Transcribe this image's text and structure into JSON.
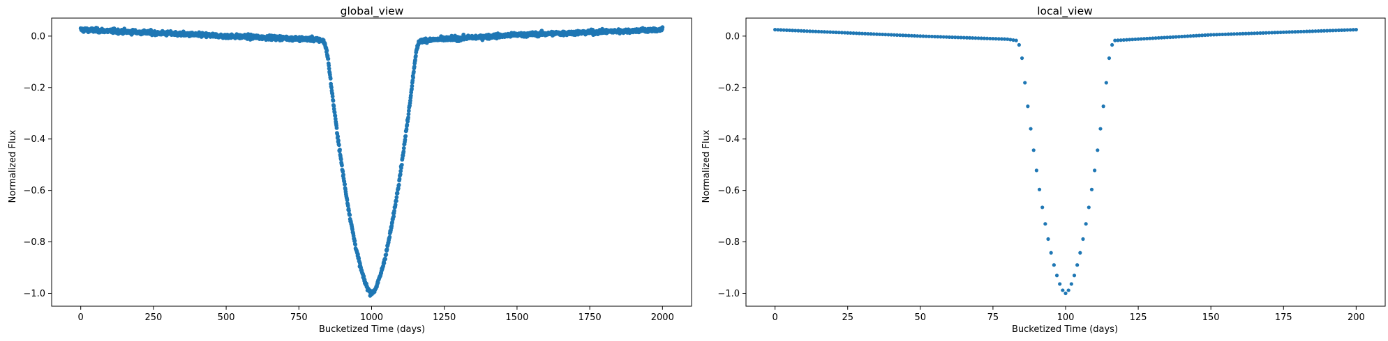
{
  "chart_data": [
    {
      "type": "scatter",
      "title": "global_view",
      "xlabel": "Bucketized Time (days)",
      "ylabel": "Normalized Flux",
      "xlim": [
        -100,
        2100
      ],
      "ylim": [
        -1.05,
        0.07
      ],
      "xticks": [
        0,
        250,
        500,
        750,
        1000,
        1250,
        1500,
        1750,
        2000
      ],
      "yticks": [
        0.0,
        -0.2,
        -0.4,
        -0.6,
        -0.8,
        -1.0
      ],
      "xtick_labels": [
        "0",
        "250",
        "500",
        "750",
        "1000",
        "1250",
        "1500",
        "1750",
        "2000"
      ],
      "ytick_labels": [
        "0.0",
        "−0.2",
        "−0.4",
        "−0.6",
        "−0.8",
        "−1.0"
      ],
      "grid": false,
      "marker_color": "#1f77b4",
      "series": [
        {
          "x_start": 0,
          "x_end": 2000,
          "num_points": 2001,
          "baseline": [
            [
              0,
              0.025
            ],
            [
              500,
              0.0
            ],
            [
              800,
              -0.012
            ],
            [
              830,
              -0.017
            ],
            [
              1170,
              -0.017
            ],
            [
              1200,
              -0.015
            ],
            [
              1500,
              0.005
            ],
            [
              2000,
              0.025
            ]
          ],
          "dip": {
            "center": 1000,
            "depth": -1.0,
            "width_core": 150,
            "width_wing": 170
          },
          "noise": 0.007
        }
      ]
    },
    {
      "type": "scatter",
      "title": "local_view",
      "xlabel": "Bucketized Time (days)",
      "ylabel": "Normalized Flux",
      "xlim": [
        -10,
        210
      ],
      "ylim": [
        -1.05,
        0.07
      ],
      "xticks": [
        0,
        25,
        50,
        75,
        100,
        125,
        150,
        175,
        200
      ],
      "yticks": [
        0.0,
        -0.2,
        -0.4,
        -0.6,
        -0.8,
        -1.0
      ],
      "xtick_labels": [
        "0",
        "25",
        "50",
        "75",
        "100",
        "125",
        "150",
        "175",
        "200"
      ],
      "ytick_labels": [
        "0.0",
        "−0.2",
        "−0.4",
        "−0.6",
        "−0.8",
        "−1.0"
      ],
      "grid": false,
      "marker_color": "#1f77b4",
      "series": [
        {
          "x_start": 0,
          "x_end": 200,
          "num_points": 201,
          "baseline": [
            [
              0,
              0.025
            ],
            [
              50,
              0.0
            ],
            [
              80,
              -0.012
            ],
            [
              83,
              -0.017
            ],
            [
              117,
              -0.017
            ],
            [
              120,
              -0.015
            ],
            [
              150,
              0.005
            ],
            [
              200,
              0.025
            ]
          ],
          "dip": {
            "center": 100,
            "depth": -1.0,
            "width_core": 15,
            "width_wing": 17
          },
          "noise": 0.0
        }
      ]
    }
  ]
}
